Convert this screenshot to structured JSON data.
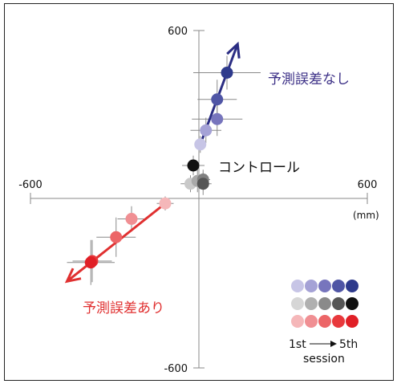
{
  "chart_data": {
    "type": "scatter",
    "xlim": [
      -600,
      600
    ],
    "ylim": [
      -600,
      600
    ],
    "x_ticks": [
      "-600",
      "600"
    ],
    "y_ticks": [
      "600",
      "-600"
    ],
    "unit": "(mm)",
    "grid": false,
    "series": [
      {
        "name": "予測誤差なし",
        "color": "#2b2d83",
        "label_color": "#3b2f86",
        "arrow": true,
        "points": [
          {
            "x": 5,
            "y": 195,
            "xerr": 20,
            "yerr": 30,
            "color": "#c7c5e6"
          },
          {
            "x": 25,
            "y": 245,
            "xerr": 55,
            "yerr": 45,
            "color": "#a5a2d6"
          },
          {
            "x": 65,
            "y": 285,
            "xerr": 90,
            "yerr": 60,
            "color": "#7775bd"
          },
          {
            "x": 65,
            "y": 355,
            "xerr": 70,
            "yerr": 70,
            "color": "#4f55a5"
          },
          {
            "x": 100,
            "y": 450,
            "xerr": 120,
            "yerr": 60,
            "color": "#2e3a8c"
          }
        ]
      },
      {
        "name": "コントロール",
        "color": "#111111",
        "label_color": "#111111",
        "arrow": false,
        "points": [
          {
            "x": -30,
            "y": 55,
            "xerr": 35,
            "yerr": 30,
            "color": "#c9c9c9"
          },
          {
            "x": -5,
            "y": 65,
            "xerr": 30,
            "yerr": 40,
            "color": "#a9a9a9"
          },
          {
            "x": 15,
            "y": 70,
            "xerr": 25,
            "yerr": 35,
            "color": "#808080"
          },
          {
            "x": 15,
            "y": 55,
            "xerr": 30,
            "yerr": 40,
            "color": "#555555"
          },
          {
            "x": -20,
            "y": 120,
            "xerr": 40,
            "yerr": 35,
            "color": "#111111"
          }
        ]
      },
      {
        "name": "予測誤差あり",
        "color": "#e03030",
        "label_color": "#e03030",
        "arrow": true,
        "points": [
          {
            "x": -120,
            "y": -15,
            "xerr": 30,
            "yerr": 25,
            "color": "#f5b7b9"
          },
          {
            "x": -240,
            "y": -70,
            "xerr": 50,
            "yerr": 45,
            "color": "#f08f93"
          },
          {
            "x": -295,
            "y": -135,
            "xerr": 70,
            "yerr": 70,
            "color": "#ec6567"
          },
          {
            "x": -380,
            "y": -220,
            "xerr": 70,
            "yerr": 75,
            "color": "#e8383c"
          },
          {
            "x": -385,
            "y": -225,
            "xerr": 85,
            "yerr": 80,
            "color": "#e01f26"
          }
        ]
      }
    ],
    "legend": {
      "placement": "bottom-right",
      "rows": [
        [
          "#c7c5e6",
          "#a5a2d6",
          "#7775bd",
          "#4f55a5",
          "#2e3a8c"
        ],
        [
          "#d6d6d6",
          "#b0b0b0",
          "#8a8a8a",
          "#555555",
          "#111111"
        ],
        [
          "#f5b7b9",
          "#f08f93",
          "#ec6567",
          "#e8383c",
          "#e01f26"
        ]
      ],
      "from_label": "1st",
      "to_label": "5th",
      "session_label": "session"
    }
  }
}
